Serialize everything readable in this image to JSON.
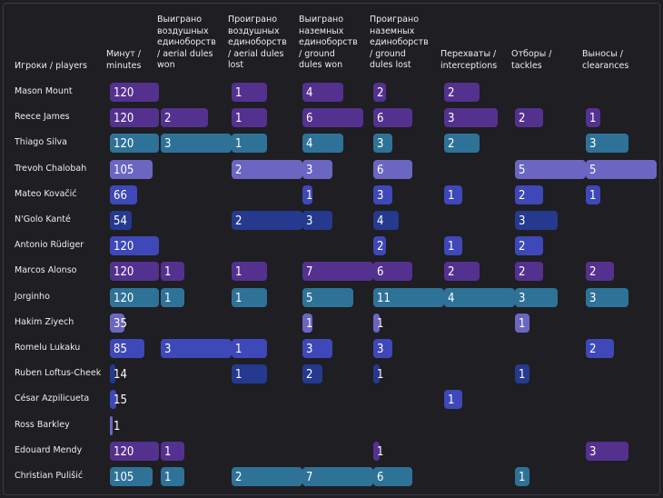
{
  "chart_data": {
    "type": "table",
    "row_header": "Игроки / players",
    "columns": [
      {
        "key": "min",
        "label": "Минут /\nminutes"
      },
      {
        "key": "aw",
        "label": "Выиграно\nвоздушных\nединоборств\n/ aerial dules\nwon"
      },
      {
        "key": "al",
        "label": "Проиграно\nвоздушных\nединоборств\n/ aerial dules\nlost"
      },
      {
        "key": "gw",
        "label": "Выиграно\nназемных\nединоборств\n/ ground\ndules won"
      },
      {
        "key": "gl",
        "label": "Проиграно\nназемных\nединоборств\n/ ground\ndules lost"
      },
      {
        "key": "int",
        "label": "Перехваты /\ninterceptions"
      },
      {
        "key": "tck",
        "label": "Отборы /\ntackles"
      },
      {
        "key": "clr",
        "label": "Выносы /\nclearances"
      }
    ],
    "rows": [
      {
        "player": "Mason Mount",
        "values": [
          120,
          null,
          1,
          4,
          2,
          2,
          null,
          null
        ],
        "tone": [
          0,
          null,
          0,
          0,
          0,
          0,
          null,
          null
        ]
      },
      {
        "player": "Reece James",
        "values": [
          120,
          2,
          1,
          6,
          6,
          3,
          2,
          1
        ],
        "tone": [
          0,
          0,
          0,
          0,
          0,
          0,
          0,
          0
        ]
      },
      {
        "player": "Thiago Silva",
        "values": [
          120,
          3,
          1,
          4,
          3,
          2,
          null,
          3
        ],
        "tone": [
          3,
          3,
          3,
          3,
          3,
          3,
          null,
          3
        ]
      },
      {
        "player": "Trevoh Chalobah",
        "values": [
          105,
          null,
          2,
          3,
          6,
          null,
          5,
          5
        ],
        "tone": [
          2,
          null,
          2,
          2,
          2,
          null,
          2,
          2
        ]
      },
      {
        "player": "Mateo Kovačić",
        "values": [
          66,
          null,
          null,
          1,
          3,
          1,
          2,
          1
        ],
        "tone": [
          1,
          null,
          null,
          1,
          1,
          1,
          1,
          1
        ]
      },
      {
        "player": "N'Golo Kanté",
        "values": [
          54,
          null,
          2,
          3,
          4,
          null,
          3,
          null
        ],
        "tone": [
          4,
          null,
          4,
          4,
          4,
          null,
          4,
          null
        ]
      },
      {
        "player": "Antonio Rüdiger",
        "values": [
          120,
          null,
          null,
          null,
          2,
          1,
          2,
          null
        ],
        "tone": [
          1,
          null,
          null,
          null,
          1,
          1,
          1,
          null
        ]
      },
      {
        "player": "Marcos Alonso",
        "values": [
          120,
          1,
          1,
          7,
          6,
          2,
          2,
          2
        ],
        "tone": [
          0,
          0,
          0,
          0,
          0,
          0,
          0,
          0
        ]
      },
      {
        "player": "Jorginho",
        "values": [
          120,
          1,
          1,
          5,
          11,
          4,
          3,
          3
        ],
        "tone": [
          3,
          3,
          3,
          3,
          3,
          3,
          3,
          3
        ]
      },
      {
        "player": "Hakim Ziyech",
        "values": [
          35,
          null,
          null,
          1,
          1,
          null,
          1,
          null
        ],
        "tone": [
          2,
          null,
          null,
          2,
          2,
          null,
          2,
          null
        ]
      },
      {
        "player": "Romelu Lukaku",
        "values": [
          85,
          3,
          1,
          3,
          3,
          null,
          null,
          2
        ],
        "tone": [
          1,
          1,
          1,
          1,
          1,
          null,
          null,
          1
        ]
      },
      {
        "player": "Ruben Loftus-Cheek",
        "values": [
          14,
          null,
          1,
          2,
          1,
          null,
          1,
          null
        ],
        "tone": [
          4,
          null,
          4,
          4,
          4,
          null,
          4,
          null
        ]
      },
      {
        "player": "César Azpilicueta",
        "values": [
          15,
          null,
          null,
          null,
          null,
          1,
          null,
          null
        ],
        "tone": [
          1,
          null,
          null,
          null,
          null,
          1,
          null,
          null
        ]
      },
      {
        "player": "Ross Barkley",
        "values": [
          1,
          null,
          null,
          null,
          null,
          null,
          null,
          null
        ],
        "tone": [
          2,
          null,
          null,
          null,
          null,
          null,
          null,
          null
        ]
      },
      {
        "player": "Edouard Mendy",
        "values": [
          120,
          1,
          null,
          null,
          1,
          null,
          null,
          3
        ],
        "tone": [
          0,
          0,
          null,
          null,
          0,
          null,
          null,
          0
        ]
      },
      {
        "player": "Christian Pulišić",
        "values": [
          105,
          1,
          2,
          7,
          6,
          null,
          1,
          null
        ],
        "tone": [
          3,
          3,
          3,
          3,
          3,
          null,
          3,
          null
        ]
      }
    ],
    "tones": [
      "#54318f",
      "#3e48b8",
      "#6a66c2",
      "#2f7298",
      "#253a8e"
    ],
    "scale_max": [
      120,
      3,
      2,
      7,
      11,
      4,
      5,
      5
    ]
  }
}
